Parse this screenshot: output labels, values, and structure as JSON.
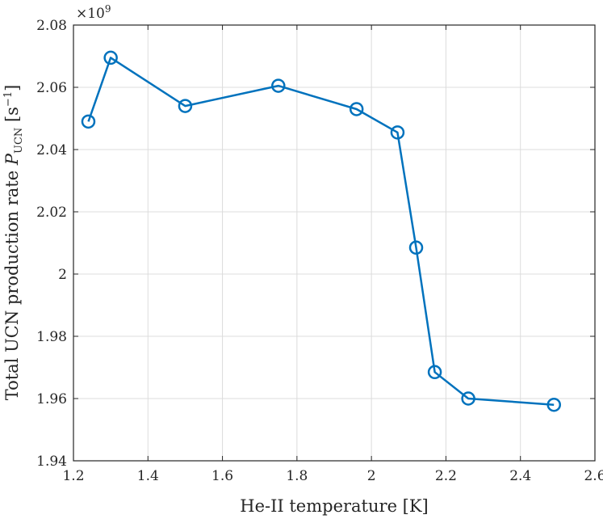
{
  "chart_data": {
    "type": "line",
    "xlabel": "He-II temperature [K]",
    "ylabel": "Total UCN production rate P_UCN [s^-1]",
    "ylabel_parts": {
      "prefix": "Total UCN production rate ",
      "symbol": "P",
      "symbol_sub": "UCN",
      "unit_open": " [s",
      "unit_sup": "−1",
      "unit_close": "]"
    },
    "y_exponent_label": "×10",
    "y_exponent_power": "9",
    "xlim": [
      1.2,
      2.6
    ],
    "ylim": [
      1.94,
      2.08
    ],
    "x_ticks": [
      1.2,
      1.4,
      1.6,
      1.8,
      2.0,
      2.2,
      2.4,
      2.6
    ],
    "x_tick_labels": [
      "1.2",
      "1.4",
      "1.6",
      "1.8",
      "2",
      "2.2",
      "2.4",
      "2.6"
    ],
    "y_ticks": [
      1.94,
      1.96,
      1.98,
      2.0,
      2.02,
      2.04,
      2.06,
      2.08
    ],
    "y_tick_labels": [
      "1.94",
      "1.96",
      "1.98",
      "2",
      "2.02",
      "2.04",
      "2.06",
      "2.08"
    ],
    "grid": true,
    "series": [
      {
        "color": "#0072bd",
        "marker": "circle",
        "x": [
          1.24,
          1.3,
          1.5,
          1.75,
          1.96,
          2.07,
          2.12,
          2.17,
          2.26,
          2.49
        ],
        "y": [
          2.049,
          2.0695,
          2.054,
          2.0605,
          2.053,
          2.0455,
          2.0085,
          1.9685,
          1.96,
          1.958
        ]
      }
    ]
  }
}
